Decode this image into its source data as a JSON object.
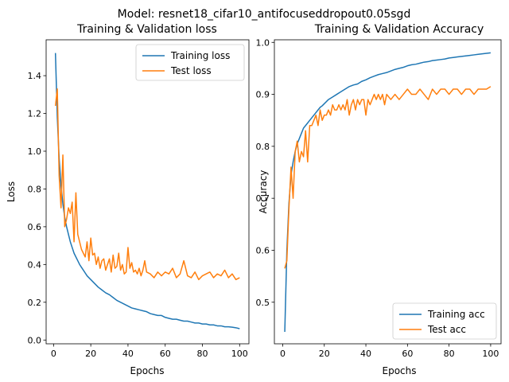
{
  "suptitle": "Model: resnet18_cifar10_antifocuseddropout0.05sgd",
  "colors": {
    "train": "#1f77b4",
    "test": "#ff7f0e"
  },
  "chart_data": [
    {
      "type": "line",
      "title": "Training & Validation loss",
      "xlabel": "Epochs",
      "ylabel": "Loss",
      "xlim": [
        -4,
        105
      ],
      "ylim": [
        -0.02,
        1.59
      ],
      "xticks": [
        0,
        20,
        40,
        60,
        80,
        100
      ],
      "yticks": [
        0.0,
        0.2,
        0.4,
        0.6,
        0.8,
        1.0,
        1.2,
        1.4
      ],
      "grid": false,
      "legend": "top-right",
      "series": [
        {
          "name": "Training loss",
          "color": "#1f77b4",
          "x": [
            1,
            2,
            3,
            4,
            5,
            6,
            7,
            8,
            9,
            10,
            11,
            12,
            13,
            14,
            15,
            16,
            17,
            18,
            19,
            20,
            22,
            24,
            26,
            28,
            30,
            32,
            34,
            36,
            38,
            40,
            42,
            44,
            46,
            48,
            50,
            52,
            54,
            56,
            58,
            60,
            62,
            64,
            66,
            68,
            70,
            72,
            74,
            76,
            78,
            80,
            82,
            84,
            86,
            88,
            90,
            92,
            94,
            96,
            98,
            100
          ],
          "y": [
            1.52,
            1.18,
            0.96,
            0.82,
            0.72,
            0.65,
            0.6,
            0.56,
            0.52,
            0.49,
            0.46,
            0.44,
            0.42,
            0.4,
            0.385,
            0.37,
            0.355,
            0.34,
            0.33,
            0.32,
            0.3,
            0.28,
            0.265,
            0.25,
            0.24,
            0.225,
            0.21,
            0.2,
            0.19,
            0.18,
            0.17,
            0.165,
            0.16,
            0.155,
            0.15,
            0.14,
            0.135,
            0.13,
            0.13,
            0.12,
            0.115,
            0.11,
            0.11,
            0.105,
            0.1,
            0.1,
            0.095,
            0.09,
            0.09,
            0.085,
            0.085,
            0.08,
            0.08,
            0.075,
            0.075,
            0.07,
            0.07,
            0.068,
            0.065,
            0.06
          ]
        },
        {
          "name": "Test loss",
          "color": "#ff7f0e",
          "x": [
            1,
            2,
            3,
            4,
            5,
            6,
            7,
            8,
            9,
            10,
            11,
            12,
            13,
            14,
            15,
            16,
            17,
            18,
            19,
            20,
            21,
            22,
            23,
            24,
            25,
            26,
            27,
            28,
            29,
            30,
            31,
            32,
            33,
            34,
            35,
            36,
            37,
            38,
            39,
            40,
            41,
            42,
            43,
            44,
            45,
            46,
            47,
            48,
            49,
            50,
            52,
            54,
            56,
            58,
            60,
            62,
            64,
            66,
            68,
            70,
            72,
            74,
            76,
            78,
            80,
            82,
            84,
            86,
            88,
            90,
            92,
            94,
            96,
            98,
            100
          ],
          "y": [
            1.24,
            1.33,
            0.87,
            0.7,
            0.98,
            0.6,
            0.64,
            0.7,
            0.67,
            0.73,
            0.52,
            0.78,
            0.56,
            0.52,
            0.48,
            0.46,
            0.44,
            0.52,
            0.42,
            0.54,
            0.45,
            0.46,
            0.4,
            0.44,
            0.38,
            0.42,
            0.43,
            0.37,
            0.4,
            0.43,
            0.36,
            0.45,
            0.38,
            0.39,
            0.46,
            0.37,
            0.4,
            0.35,
            0.36,
            0.49,
            0.38,
            0.41,
            0.36,
            0.37,
            0.35,
            0.38,
            0.34,
            0.37,
            0.42,
            0.36,
            0.35,
            0.33,
            0.36,
            0.34,
            0.36,
            0.35,
            0.38,
            0.33,
            0.35,
            0.42,
            0.34,
            0.33,
            0.36,
            0.32,
            0.34,
            0.35,
            0.36,
            0.33,
            0.35,
            0.34,
            0.37,
            0.33,
            0.35,
            0.32,
            0.33
          ]
        }
      ]
    },
    {
      "type": "line",
      "title": "Training & Validation Accuracy",
      "xlabel": "Epochs",
      "ylabel": "Accuracy",
      "xlim": [
        -4,
        105
      ],
      "ylim": [
        0.42,
        1.005
      ],
      "xticks": [
        0,
        20,
        40,
        60,
        80,
        100
      ],
      "yticks": [
        0.5,
        0.6,
        0.7,
        0.8,
        0.9,
        1.0
      ],
      "grid": false,
      "legend": "bottom-right",
      "series": [
        {
          "name": "Training acc",
          "color": "#1f77b4",
          "x": [
            1,
            2,
            3,
            4,
            5,
            6,
            7,
            8,
            9,
            10,
            11,
            12,
            13,
            14,
            15,
            16,
            17,
            18,
            19,
            20,
            22,
            24,
            26,
            28,
            30,
            32,
            34,
            36,
            38,
            40,
            42,
            44,
            46,
            48,
            50,
            52,
            54,
            56,
            58,
            60,
            62,
            64,
            66,
            68,
            70,
            72,
            74,
            76,
            78,
            80,
            82,
            84,
            86,
            88,
            90,
            92,
            94,
            96,
            98,
            100
          ],
          "y": [
            0.443,
            0.6,
            0.69,
            0.745,
            0.77,
            0.79,
            0.805,
            0.815,
            0.825,
            0.835,
            0.84,
            0.845,
            0.85,
            0.855,
            0.86,
            0.865,
            0.87,
            0.875,
            0.878,
            0.882,
            0.89,
            0.895,
            0.9,
            0.905,
            0.91,
            0.915,
            0.918,
            0.92,
            0.925,
            0.928,
            0.932,
            0.935,
            0.938,
            0.94,
            0.942,
            0.945,
            0.948,
            0.95,
            0.952,
            0.955,
            0.957,
            0.958,
            0.96,
            0.962,
            0.963,
            0.965,
            0.966,
            0.967,
            0.968,
            0.97,
            0.971,
            0.972,
            0.973,
            0.974,
            0.975,
            0.976,
            0.977,
            0.978,
            0.979,
            0.98
          ]
        },
        {
          "name": "Test acc",
          "color": "#ff7f0e",
          "x": [
            1,
            2,
            3,
            4,
            5,
            6,
            7,
            8,
            9,
            10,
            11,
            12,
            13,
            14,
            15,
            16,
            17,
            18,
            19,
            20,
            21,
            22,
            23,
            24,
            25,
            26,
            27,
            28,
            29,
            30,
            31,
            32,
            33,
            34,
            35,
            36,
            37,
            38,
            39,
            40,
            41,
            42,
            43,
            44,
            45,
            46,
            47,
            48,
            49,
            50,
            52,
            54,
            56,
            58,
            60,
            62,
            64,
            66,
            68,
            70,
            72,
            74,
            76,
            78,
            80,
            82,
            84,
            86,
            88,
            90,
            92,
            94,
            96,
            98,
            100
          ],
          "y": [
            0.565,
            0.58,
            0.68,
            0.76,
            0.7,
            0.79,
            0.81,
            0.77,
            0.79,
            0.78,
            0.83,
            0.77,
            0.84,
            0.84,
            0.85,
            0.86,
            0.84,
            0.87,
            0.85,
            0.86,
            0.86,
            0.87,
            0.86,
            0.88,
            0.87,
            0.87,
            0.88,
            0.87,
            0.88,
            0.87,
            0.89,
            0.86,
            0.88,
            0.89,
            0.87,
            0.89,
            0.88,
            0.89,
            0.89,
            0.86,
            0.89,
            0.88,
            0.89,
            0.9,
            0.89,
            0.9,
            0.89,
            0.9,
            0.88,
            0.9,
            0.89,
            0.9,
            0.89,
            0.9,
            0.91,
            0.9,
            0.9,
            0.91,
            0.9,
            0.89,
            0.91,
            0.9,
            0.91,
            0.91,
            0.9,
            0.91,
            0.91,
            0.9,
            0.91,
            0.91,
            0.9,
            0.91,
            0.91,
            0.91,
            0.915
          ]
        }
      ]
    }
  ]
}
